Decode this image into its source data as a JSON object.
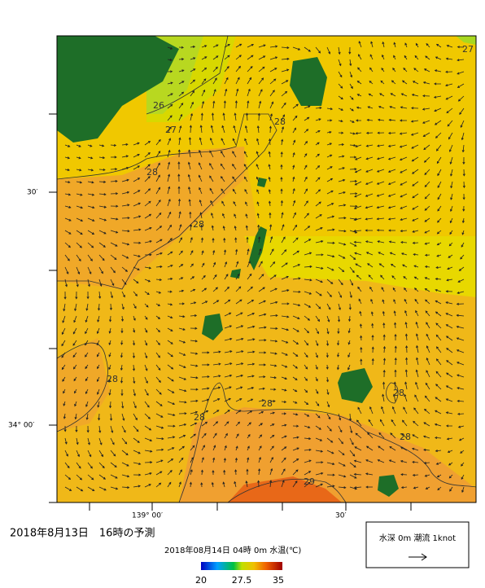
{
  "map": {
    "lat_labels": [
      "30′",
      "34° 00′"
    ],
    "lon_labels": [
      "139° 00′",
      "30′"
    ],
    "contour_labels": [
      "26",
      "27",
      "27",
      "28",
      "28",
      "28",
      "28",
      "28",
      "28",
      "28",
      "28",
      "29"
    ]
  },
  "footer": {
    "forecast": "2018年8月13日　16時の予測",
    "caption": "2018年08月14日 04時 0m 水温(℃)"
  },
  "colorbar": {
    "ticks": [
      "20",
      "27.5",
      "35"
    ]
  },
  "legend": {
    "text": "水深 0m 潮流 1knot"
  }
}
